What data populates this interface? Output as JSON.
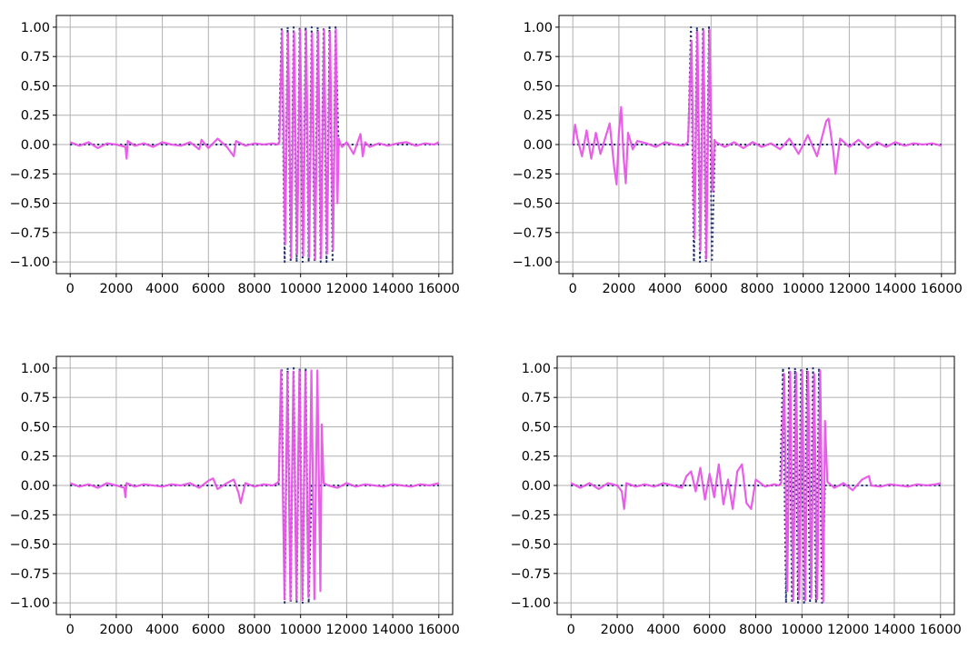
{
  "colors": {
    "signal": "#e855e8",
    "reference": "#1a2a6e",
    "grid": "#b0b0b0",
    "axes": "#000000",
    "background": "#ffffff"
  },
  "chart_data": [
    {
      "type": "line",
      "grid": true,
      "xlim": [
        -600,
        16600
      ],
      "ylim": [
        -1.1,
        1.1
      ],
      "x_ticks": [
        0,
        2000,
        4000,
        6000,
        8000,
        10000,
        12000,
        14000,
        16000
      ],
      "x_tick_labels": [
        "0",
        "2000",
        "4000",
        "6000",
        "8000",
        "10000",
        "12000",
        "14000",
        "16000"
      ],
      "y_ticks": [
        1.0,
        0.75,
        0.5,
        0.25,
        0.0,
        -0.25,
        -0.5,
        -0.75,
        -1.0
      ],
      "y_tick_labels": [
        "1.00",
        "0.75",
        "0.50",
        "0.25",
        "0.00",
        "−0.25",
        "−0.50",
        "−0.75",
        "−1.00"
      ],
      "series": [
        {
          "style": "dotted",
          "color": "#1a2a6e",
          "x": [
            0,
            9050,
            9180,
            9310,
            9440,
            9570,
            9700,
            9830,
            9960,
            10090,
            10220,
            10350,
            10480,
            10610,
            10740,
            10870,
            11000,
            11130,
            11260,
            11390,
            11520,
            11650,
            16000
          ],
          "y": [
            0,
            0,
            1.0,
            -1.0,
            1.0,
            -1.0,
            1.0,
            -1.0,
            1.0,
            -1.0,
            1.0,
            -1.0,
            1.0,
            -1.0,
            1.0,
            -1.0,
            1.0,
            -1.0,
            1.0,
            -1.0,
            1.0,
            0,
            0
          ]
        },
        {
          "style": "solid",
          "color": "#e855e8",
          "x": [
            0,
            400,
            800,
            1200,
            1600,
            2000,
            2400,
            2450,
            2500,
            2800,
            3200,
            3600,
            4000,
            4400,
            4800,
            5200,
            5600,
            5700,
            6000,
            6400,
            6800,
            7100,
            7200,
            7600,
            8000,
            8400,
            8800,
            9000,
            9080,
            9200,
            9330,
            9460,
            9590,
            9720,
            9850,
            9980,
            10110,
            10240,
            10370,
            10500,
            10630,
            10760,
            10890,
            11020,
            11150,
            11280,
            11410,
            11530,
            11600,
            11660,
            11700,
            11800,
            12000,
            12300,
            12600,
            12700,
            12800,
            13000,
            13400,
            13800,
            14200,
            14600,
            15000,
            15400,
            15800,
            16000
          ],
          "y": [
            0.02,
            -0.01,
            0.02,
            -0.03,
            0.01,
            0.0,
            -0.02,
            -0.12,
            0.03,
            -0.01,
            0.01,
            -0.02,
            0.02,
            0.0,
            -0.01,
            0.02,
            -0.04,
            0.04,
            -0.03,
            0.05,
            -0.02,
            -0.1,
            0.03,
            -0.01,
            0.01,
            0.0,
            0.01,
            0.0,
            0.02,
            0.97,
            -0.85,
            0.95,
            -0.97,
            0.96,
            -0.93,
            0.98,
            -0.95,
            0.97,
            -0.96,
            0.95,
            -0.98,
            0.96,
            -0.97,
            0.98,
            -0.93,
            0.96,
            -0.9,
            0.98,
            -0.5,
            0.05,
            0.02,
            -0.02,
            0.02,
            -0.08,
            0.09,
            -0.1,
            0.02,
            -0.02,
            0.01,
            -0.01,
            0.01,
            0.02,
            -0.01,
            0.01,
            0.0,
            0.02
          ]
        }
      ]
    },
    {
      "type": "line",
      "grid": true,
      "xlim": [
        -600,
        16600
      ],
      "ylim": [
        -1.1,
        1.1
      ],
      "x_ticks": [
        0,
        2000,
        4000,
        6000,
        8000,
        10000,
        12000,
        14000,
        16000
      ],
      "x_tick_labels": [
        "0",
        "2000",
        "4000",
        "6000",
        "8000",
        "10000",
        "12000",
        "14000",
        "16000"
      ],
      "y_ticks": [
        1.0,
        0.75,
        0.5,
        0.25,
        0.0,
        -0.25,
        -0.5,
        -0.75,
        -1.0
      ],
      "y_tick_labels": [
        "1.00",
        "0.75",
        "0.50",
        "0.25",
        "0.00",
        "−0.25",
        "−0.50",
        "−0.75",
        "−1.00"
      ],
      "series": [
        {
          "style": "dotted",
          "color": "#1a2a6e",
          "x": [
            0,
            5000,
            5130,
            5260,
            5390,
            5520,
            5650,
            5780,
            5910,
            6040,
            6170,
            16000
          ],
          "y": [
            0,
            0,
            1.0,
            -1.0,
            1.0,
            -1.0,
            1.0,
            -1.0,
            1.0,
            -1.0,
            0,
            0
          ]
        },
        {
          "style": "solid",
          "color": "#e855e8",
          "x": [
            0,
            100,
            200,
            400,
            600,
            800,
            1000,
            1200,
            1400,
            1600,
            1800,
            1900,
            2000,
            2100,
            2200,
            2300,
            2400,
            2600,
            2800,
            3200,
            3600,
            4000,
            4400,
            4800,
            5000,
            5150,
            5280,
            5410,
            5540,
            5670,
            5800,
            5930,
            6060,
            6150,
            6200,
            6600,
            7000,
            7400,
            7800,
            8200,
            8600,
            9000,
            9400,
            9800,
            10200,
            10600,
            11000,
            11100,
            11300,
            11400,
            11600,
            12000,
            12400,
            12800,
            13200,
            13600,
            14000,
            14400,
            14800,
            15200,
            15600,
            16000
          ],
          "y": [
            0.0,
            0.17,
            0.05,
            -0.1,
            0.12,
            -0.12,
            0.1,
            -0.08,
            0.05,
            0.18,
            -0.2,
            -0.34,
            0.1,
            0.32,
            -0.1,
            -0.33,
            0.1,
            -0.04,
            0.03,
            0.01,
            -0.02,
            0.02,
            0.0,
            -0.01,
            0.02,
            0.88,
            -0.8,
            0.96,
            -0.9,
            0.97,
            -0.97,
            0.98,
            -0.4,
            0.04,
            0.02,
            -0.02,
            0.02,
            -0.03,
            0.02,
            -0.02,
            0.01,
            -0.04,
            0.05,
            -0.08,
            0.08,
            -0.1,
            0.2,
            0.22,
            -0.05,
            -0.25,
            0.05,
            -0.02,
            0.04,
            -0.03,
            0.02,
            -0.02,
            0.02,
            -0.01,
            0.01,
            0.0,
            0.01,
            -0.01
          ]
        }
      ]
    },
    {
      "type": "line",
      "grid": true,
      "xlim": [
        -600,
        16600
      ],
      "ylim": [
        -1.1,
        1.1
      ],
      "x_ticks": [
        0,
        2000,
        4000,
        6000,
        8000,
        10000,
        12000,
        14000,
        16000
      ],
      "x_tick_labels": [
        "0",
        "2000",
        "4000",
        "6000",
        "8000",
        "10000",
        "12000",
        "14000",
        "16000"
      ],
      "y_ticks": [
        1.0,
        0.75,
        0.5,
        0.25,
        0.0,
        -0.25,
        -0.5,
        -0.75,
        -1.0
      ],
      "y_tick_labels": [
        "1.00",
        "0.75",
        "0.50",
        "0.25",
        "0.00",
        "−0.25",
        "−0.50",
        "−0.75",
        "−1.00"
      ],
      "series": [
        {
          "style": "dotted",
          "color": "#1a2a6e",
          "x": [
            0,
            9050,
            9180,
            9310,
            9440,
            9570,
            9700,
            9830,
            9960,
            10090,
            10220,
            10350,
            10480,
            16000
          ],
          "y": [
            0,
            0,
            1.0,
            -1.0,
            1.0,
            -1.0,
            1.0,
            -1.0,
            1.0,
            -1.0,
            1.0,
            -1.0,
            0,
            0
          ]
        },
        {
          "style": "solid",
          "color": "#e855e8",
          "x": [
            0,
            400,
            800,
            1200,
            1600,
            2000,
            2350,
            2400,
            2450,
            2800,
            3200,
            3600,
            4000,
            4400,
            4800,
            5200,
            5600,
            6000,
            6200,
            6400,
            6800,
            7100,
            7300,
            7400,
            7600,
            8000,
            8400,
            8800,
            9050,
            9150,
            9300,
            9430,
            9560,
            9690,
            9820,
            9950,
            10080,
            10210,
            10340,
            10470,
            10600,
            10730,
            10860,
            10920,
            11000,
            11200,
            11600,
            12000,
            12400,
            12800,
            13200,
            13600,
            14000,
            14400,
            14800,
            15200,
            15600,
            16000
          ],
          "y": [
            0.02,
            -0.01,
            0.01,
            -0.02,
            0.02,
            0.0,
            -0.02,
            -0.1,
            0.02,
            -0.01,
            0.01,
            0.0,
            -0.01,
            0.01,
            0.0,
            0.02,
            -0.02,
            0.04,
            0.06,
            -0.03,
            0.02,
            0.05,
            -0.06,
            -0.15,
            0.02,
            -0.01,
            0.01,
            0.0,
            0.03,
            0.98,
            -0.97,
            0.96,
            -0.98,
            0.97,
            -0.97,
            0.98,
            -0.98,
            0.97,
            -0.95,
            0.98,
            -0.97,
            0.98,
            -0.9,
            0.52,
            0.02,
            0.0,
            -0.02,
            0.02,
            -0.01,
            0.01,
            0.0,
            -0.01,
            0.01,
            0.0,
            -0.01,
            0.01,
            0.0,
            0.02
          ]
        }
      ]
    },
    {
      "type": "line",
      "grid": true,
      "xlim": [
        -600,
        16600
      ],
      "ylim": [
        -1.1,
        1.1
      ],
      "x_ticks": [
        0,
        2000,
        4000,
        6000,
        8000,
        10000,
        12000,
        14000,
        16000
      ],
      "x_tick_labels": [
        "0",
        "2000",
        "4000",
        "6000",
        "8000",
        "10000",
        "12000",
        "14000",
        "16000"
      ],
      "y_ticks": [
        1.0,
        0.75,
        0.5,
        0.25,
        0.0,
        -0.25,
        -0.5,
        -0.75,
        -1.0
      ],
      "y_tick_labels": [
        "1.00",
        "0.75",
        "0.50",
        "0.25",
        "0.00",
        "−0.25",
        "−0.50",
        "−0.75",
        "−1.00"
      ],
      "series": [
        {
          "style": "dotted",
          "color": "#1a2a6e",
          "x": [
            0,
            9050,
            9180,
            9310,
            9440,
            9570,
            9700,
            9830,
            9960,
            10090,
            10220,
            10350,
            10480,
            10610,
            10740,
            10870,
            11000,
            16000
          ],
          "y": [
            0,
            0,
            1.0,
            -1.0,
            1.0,
            -1.0,
            1.0,
            -1.0,
            1.0,
            -1.0,
            1.0,
            -1.0,
            1.0,
            -1.0,
            1.0,
            -1.0,
            0,
            0
          ]
        },
        {
          "style": "solid",
          "color": "#e855e8",
          "x": [
            0,
            400,
            800,
            1200,
            1600,
            2000,
            2200,
            2300,
            2400,
            2800,
            3200,
            3600,
            4000,
            4400,
            4800,
            5000,
            5200,
            5400,
            5600,
            5800,
            6000,
            6200,
            6400,
            6600,
            6800,
            7000,
            7200,
            7400,
            7600,
            7800,
            8000,
            8400,
            8800,
            9000,
            9100,
            9230,
            9360,
            9490,
            9620,
            9750,
            9880,
            10010,
            10140,
            10270,
            10400,
            10530,
            10660,
            10790,
            10920,
            11000,
            11100,
            11400,
            11800,
            12200,
            12600,
            12900,
            13000,
            13400,
            13800,
            14200,
            14600,
            15000,
            15400,
            15800,
            16000
          ],
          "y": [
            0.02,
            -0.02,
            0.02,
            -0.03,
            0.02,
            0.0,
            -0.05,
            -0.2,
            0.02,
            -0.01,
            0.01,
            -0.01,
            0.02,
            0.0,
            -0.02,
            0.08,
            0.12,
            -0.05,
            0.15,
            -0.12,
            0.1,
            -0.1,
            0.18,
            -0.16,
            0.05,
            -0.2,
            0.12,
            0.18,
            -0.15,
            -0.2,
            0.05,
            -0.01,
            0.01,
            0.0,
            0.02,
            0.95,
            -0.9,
            0.97,
            -0.98,
            0.96,
            -0.97,
            0.98,
            -0.98,
            0.97,
            -0.96,
            0.95,
            -0.97,
            0.98,
            -0.99,
            0.55,
            0.03,
            -0.02,
            0.02,
            -0.04,
            0.05,
            0.08,
            0.0,
            -0.01,
            0.01,
            0.0,
            -0.01,
            0.01,
            0.0,
            0.01,
            0.02
          ]
        }
      ]
    }
  ]
}
